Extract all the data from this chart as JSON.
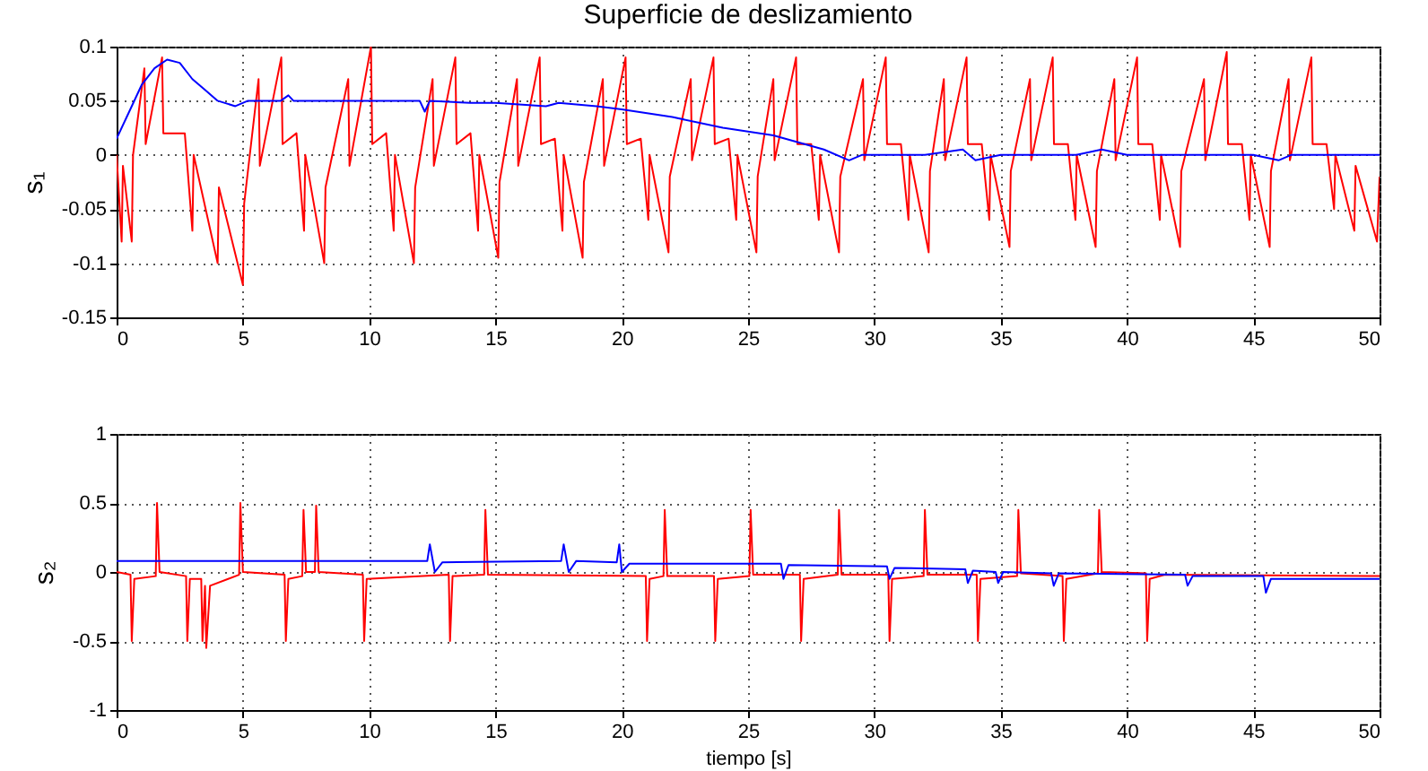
{
  "chart_data": [
    {
      "type": "line",
      "title": "Superficie de deslizamiento",
      "ylabel": "s₁",
      "xlim": [
        0,
        50
      ],
      "xticks": [
        0,
        5,
        10,
        15,
        20,
        25,
        30,
        35,
        40,
        45,
        50
      ],
      "ylim": [
        -0.15,
        0.1
      ],
      "yticks": [
        -0.15,
        -0.1,
        -0.05,
        0,
        0.05,
        0.1
      ],
      "grid": true,
      "line_style": "solid",
      "series": [
        {
          "color": "#ff0000",
          "x": [
            0,
            0.2,
            0.25,
            0.6,
            0.65,
            1.1,
            1.15,
            1.8,
            1.85,
            2.7,
            3.0,
            3.05,
            4.0,
            4.05,
            5.0,
            5.05,
            5.62,
            5.67,
            6.52,
            6.57,
            7.12,
            7.42,
            7.47,
            8.22,
            8.27,
            9.17,
            9.22,
            10.07,
            10.12,
            10.67,
            10.97,
            11.02,
            11.77,
            11.82,
            12.51,
            12.56,
            13.41,
            13.46,
            14.01,
            14.31,
            14.36,
            15.11,
            15.16,
            15.85,
            15.9,
            16.75,
            16.8,
            17.35,
            17.65,
            17.7,
            18.45,
            18.5,
            19.25,
            19.3,
            20.15,
            20.2,
            20.75,
            21.05,
            21.1,
            21.85,
            21.9,
            22.73,
            22.78,
            23.63,
            23.68,
            24.23,
            24.53,
            24.58,
            25.33,
            25.38,
            26.0,
            26.05,
            26.9,
            26.95,
            27.5,
            27.8,
            27.85,
            28.6,
            28.65,
            29.55,
            29.6,
            30.45,
            30.5,
            31.05,
            31.35,
            31.4,
            32.15,
            32.2,
            32.75,
            32.8,
            33.65,
            33.7,
            34.25,
            34.55,
            34.6,
            35.35,
            35.4,
            36.16,
            36.21,
            37.06,
            37.11,
            37.66,
            37.96,
            38.01,
            38.76,
            38.81,
            39.5,
            39.55,
            40.4,
            40.45,
            41.0,
            41.3,
            41.35,
            42.1,
            42.15,
            43.05,
            43.1,
            43.95,
            44.0,
            44.55,
            44.85,
            44.9,
            45.65,
            45.7,
            46.4,
            46.45,
            47.3,
            47.35,
            47.9,
            48.2,
            48.25,
            49.0,
            49.05,
            49.9,
            50
          ],
          "values": [
            0,
            -0.08,
            -0.01,
            -0.08,
            0.0,
            0.08,
            0.01,
            0.09,
            0.02,
            0.02,
            -0.07,
            0.0,
            -0.1,
            -0.03,
            -0.12,
            -0.045,
            0.07,
            -0.01,
            0.09,
            0.01,
            0.02,
            -0.07,
            0.0,
            -0.1,
            -0.03,
            0.07,
            -0.01,
            0.1,
            0.01,
            0.02,
            -0.07,
            0.0,
            -0.1,
            -0.03,
            0.07,
            -0.01,
            0.09,
            0.01,
            0.02,
            -0.07,
            0.0,
            -0.095,
            -0.025,
            0.07,
            -0.01,
            0.09,
            0.01,
            0.015,
            -0.07,
            0.0,
            -0.095,
            -0.025,
            0.07,
            -0.01,
            0.09,
            0.01,
            0.015,
            -0.06,
            0.0,
            -0.09,
            -0.02,
            0.07,
            -0.005,
            0.09,
            0.01,
            0.015,
            -0.06,
            0.0,
            -0.09,
            -0.02,
            0.07,
            -0.005,
            0.09,
            0.01,
            0.01,
            -0.06,
            0.0,
            -0.09,
            -0.02,
            0.07,
            -0.005,
            0.09,
            0.01,
            0.01,
            -0.06,
            0.0,
            -0.09,
            -0.015,
            0.07,
            -0.005,
            0.09,
            0.01,
            0.01,
            -0.06,
            0.0,
            -0.085,
            -0.015,
            0.07,
            -0.005,
            0.09,
            0.01,
            0.01,
            -0.06,
            0.0,
            -0.085,
            -0.015,
            0.07,
            -0.005,
            0.09,
            0.01,
            0.01,
            -0.06,
            0.0,
            -0.085,
            -0.015,
            0.07,
            -0.005,
            0.095,
            0.01,
            0.01,
            -0.06,
            0.0,
            -0.085,
            -0.015,
            0.07,
            -0.005,
            0.09,
            0.01,
            0.01,
            -0.05,
            0.0,
            -0.07,
            -0.01,
            -0.08,
            -0.02
          ]
        },
        {
          "color": "#0000ff",
          "x": [
            0,
            0.5,
            1,
            1.5,
            2,
            2.5,
            3,
            3.5,
            4,
            4.7,
            5.2,
            6.5,
            6.8,
            7,
            12,
            12.2,
            12.4,
            14,
            15,
            17,
            17.5,
            19,
            20,
            22,
            24,
            26,
            28,
            29,
            29.5,
            32,
            33.5,
            34,
            35,
            38,
            39,
            40,
            45,
            46,
            46.5,
            50
          ],
          "values": [
            0.015,
            0.04,
            0.065,
            0.08,
            0.088,
            0.085,
            0.07,
            0.06,
            0.05,
            0.045,
            0.05,
            0.05,
            0.055,
            0.05,
            0.05,
            0.04,
            0.05,
            0.048,
            0.048,
            0.045,
            0.048,
            0.045,
            0.042,
            0.035,
            0.025,
            0.018,
            0.005,
            -0.005,
            0.0,
            0.0,
            0.005,
            -0.005,
            0.0,
            0.0,
            0.005,
            0.0,
            0.0,
            -0.005,
            0.0,
            0.0
          ]
        }
      ]
    },
    {
      "type": "line",
      "xlabel": "tiempo [s]",
      "ylabel": "s₂",
      "xlim": [
        0,
        50
      ],
      "xticks": [
        0,
        5,
        10,
        15,
        20,
        25,
        30,
        35,
        40,
        45,
        50
      ],
      "ylim": [
        -1,
        1
      ],
      "yticks": [
        -1,
        -0.5,
        0,
        0.5,
        1
      ],
      "grid": true,
      "line_style": "solid",
      "series": [
        {
          "color": "#ff0000",
          "x": [
            0,
            0.55,
            0.6,
            0.7,
            1.55,
            1.6,
            1.7,
            2.75,
            2.8,
            2.9,
            3.35,
            3.4,
            3.5,
            3.55,
            3.7,
            4.85,
            4.9,
            5.0,
            6.65,
            6.7,
            6.8,
            7.35,
            7.4,
            7.5,
            7.85,
            7.9,
            8.0,
            9.75,
            9.8,
            9.9,
            13.15,
            13.2,
            13.3,
            14.55,
            14.6,
            14.7,
            20.95,
            21.0,
            21.1,
            21.65,
            21.7,
            21.8,
            23.65,
            23.7,
            23.8,
            25.05,
            25.1,
            25.2,
            27.05,
            27.1,
            27.2,
            28.55,
            28.6,
            28.7,
            30.55,
            30.6,
            30.7,
            31.95,
            32.0,
            32.1,
            34.05,
            34.1,
            34.2,
            35.65,
            35.7,
            35.8,
            37.45,
            37.5,
            37.6,
            38.85,
            38.9,
            39.0,
            40.75,
            40.8,
            40.9,
            41.5,
            50
          ],
          "values": [
            0.0,
            -0.02,
            -0.5,
            -0.05,
            -0.03,
            0.5,
            0.0,
            -0.03,
            -0.5,
            -0.05,
            -0.05,
            -0.5,
            -0.1,
            -0.55,
            -0.1,
            -0.02,
            0.5,
            0.0,
            -0.02,
            -0.5,
            -0.05,
            -0.03,
            0.45,
            0.0,
            0.0,
            0.48,
            0.0,
            -0.02,
            -0.5,
            -0.05,
            -0.02,
            -0.5,
            -0.03,
            -0.02,
            0.45,
            -0.02,
            -0.03,
            -0.5,
            -0.05,
            -0.03,
            0.45,
            -0.03,
            -0.03,
            -0.5,
            -0.05,
            -0.03,
            0.45,
            -0.02,
            -0.02,
            -0.5,
            -0.05,
            -0.02,
            0.45,
            -0.02,
            -0.02,
            -0.5,
            -0.05,
            -0.03,
            0.45,
            -0.02,
            -0.02,
            -0.5,
            -0.05,
            -0.03,
            0.45,
            -0.01,
            -0.03,
            -0.5,
            -0.05,
            -0.01,
            0.45,
            0.0,
            -0.01,
            -0.5,
            -0.05,
            -0.02,
            -0.03
          ]
        },
        {
          "color": "#0000ff",
          "x": [
            0,
            12.3,
            12.4,
            12.6,
            12.9,
            17.6,
            17.7,
            17.9,
            18.2,
            19.8,
            19.9,
            20.0,
            20.3,
            26.3,
            26.4,
            26.6,
            30.5,
            30.6,
            30.8,
            33.6,
            33.7,
            33.9,
            34.8,
            34.9,
            35.1,
            37.0,
            37.1,
            37.3,
            42.3,
            42.4,
            42.6,
            45.4,
            45.5,
            45.7,
            50
          ],
          "values": [
            0.08,
            0.08,
            0.2,
            0.0,
            0.07,
            0.08,
            0.2,
            0.0,
            0.08,
            0.07,
            0.2,
            0.0,
            0.06,
            0.06,
            -0.05,
            0.05,
            0.04,
            -0.05,
            0.03,
            0.02,
            -0.08,
            0.01,
            0.0,
            -0.08,
            0.0,
            -0.01,
            -0.1,
            -0.01,
            -0.02,
            -0.1,
            -0.03,
            -0.03,
            -0.15,
            -0.05,
            -0.05
          ]
        }
      ]
    }
  ]
}
